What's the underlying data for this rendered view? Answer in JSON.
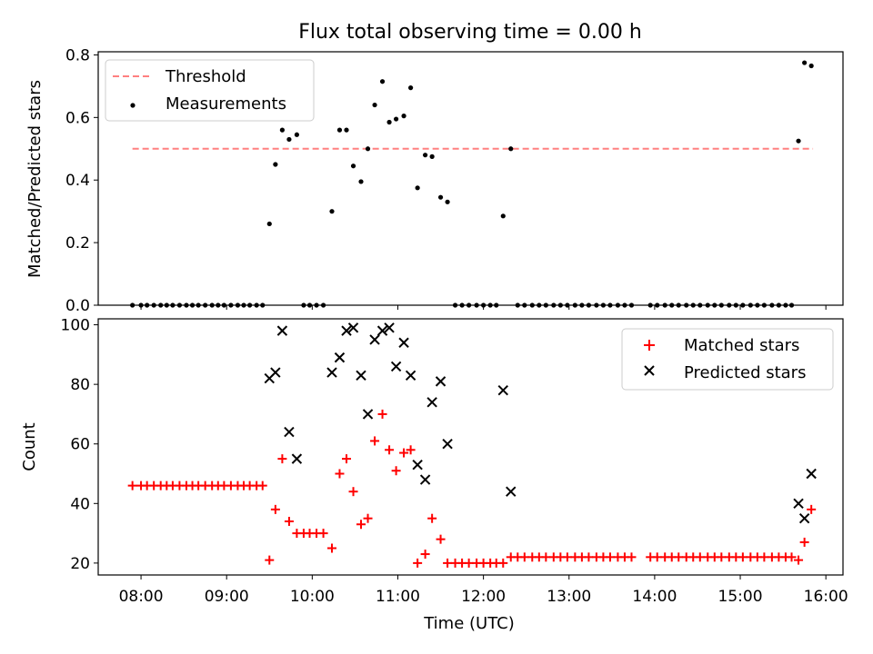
{
  "chart_data": [
    {
      "type": "scatter",
      "title": "Flux total observing time = 0.00 h",
      "xlabel": "",
      "ylabel": "Matched/Predicted stars",
      "xlim": [
        7.5,
        16.2
      ],
      "ylim": [
        0,
        0.81
      ],
      "yticks": [
        0.0,
        0.2,
        0.4,
        0.6,
        0.8
      ],
      "ytick_labels": [
        "0.0",
        "0.2",
        "0.4",
        "0.6",
        "0.8"
      ],
      "legend_position": "upper-left",
      "threshold": {
        "name": "Threshold",
        "value": 0.5,
        "x_range": [
          7.9,
          15.85
        ],
        "color": "#ff8080"
      },
      "series": [
        {
          "name": "Measurements",
          "color": "#000000",
          "x": [
            7.9,
            8.0,
            8.07,
            8.15,
            8.23,
            8.3,
            8.37,
            8.45,
            8.53,
            8.6,
            8.67,
            8.75,
            8.83,
            8.9,
            8.97,
            9.05,
            9.13,
            9.2,
            9.27,
            9.35,
            9.42,
            9.5,
            9.57,
            9.65,
            9.73,
            9.82,
            9.9,
            9.97,
            10.05,
            10.13,
            10.23,
            10.32,
            10.4,
            10.48,
            10.57,
            10.65,
            10.73,
            10.82,
            10.9,
            10.98,
            11.07,
            11.15,
            11.23,
            11.32,
            11.4,
            11.5,
            11.58,
            11.67,
            11.75,
            11.83,
            11.92,
            12.0,
            12.08,
            12.15,
            12.23,
            12.32,
            12.4,
            12.48,
            12.57,
            12.65,
            12.73,
            12.82,
            12.9,
            12.98,
            13.07,
            13.15,
            13.23,
            13.32,
            13.4,
            13.48,
            13.57,
            13.65,
            13.73,
            13.95,
            14.03,
            14.12,
            14.2,
            14.28,
            14.37,
            14.45,
            14.53,
            14.62,
            14.7,
            14.78,
            14.87,
            14.95,
            15.03,
            15.12,
            15.2,
            15.28,
            15.37,
            15.45,
            15.53,
            15.6,
            15.68,
            15.75,
            15.83
          ],
          "y": [
            0,
            0,
            0,
            0,
            0,
            0,
            0,
            0,
            0,
            0,
            0,
            0,
            0,
            0,
            0,
            0,
            0,
            0,
            0,
            0,
            0,
            0.26,
            0.45,
            0.56,
            0.53,
            0.545,
            0,
            0,
            0,
            0,
            0.3,
            0.56,
            0.56,
            0.445,
            0.395,
            0.5,
            0.64,
            0.715,
            0.585,
            0.595,
            0.605,
            0.695,
            0.375,
            0.48,
            0.475,
            0.345,
            0.33,
            0,
            0,
            0,
            0,
            0,
            0,
            0,
            0.285,
            0.5,
            0,
            0,
            0,
            0,
            0,
            0,
            0,
            0,
            0,
            0,
            0,
            0,
            0,
            0,
            0,
            0,
            0,
            0,
            0,
            0,
            0,
            0,
            0,
            0,
            0,
            0,
            0,
            0,
            0,
            0,
            0,
            0,
            0,
            0,
            0,
            0,
            0,
            0,
            0.525,
            0.775,
            0.765
          ]
        }
      ]
    },
    {
      "type": "scatter",
      "title": "",
      "xlabel": "Time (UTC)",
      "ylabel": "Count",
      "xlim": [
        7.5,
        16.2
      ],
      "ylim": [
        16,
        102
      ],
      "xticks": [
        8,
        9,
        10,
        11,
        12,
        13,
        14,
        15,
        16
      ],
      "xtick_labels": [
        "08:00",
        "09:00",
        "10:00",
        "11:00",
        "12:00",
        "13:00",
        "14:00",
        "15:00",
        "16:00"
      ],
      "yticks": [
        20,
        40,
        60,
        80,
        100
      ],
      "ytick_labels": [
        "20",
        "40",
        "60",
        "80",
        "100"
      ],
      "legend_position": "upper-right",
      "series": [
        {
          "name": "Matched stars",
          "marker": "plus",
          "color": "#ff0000",
          "x": [
            7.9,
            8.0,
            8.07,
            8.15,
            8.23,
            8.3,
            8.37,
            8.45,
            8.53,
            8.6,
            8.67,
            8.75,
            8.83,
            8.9,
            8.97,
            9.05,
            9.13,
            9.2,
            9.27,
            9.35,
            9.42,
            9.5,
            9.57,
            9.65,
            9.73,
            9.82,
            9.9,
            9.97,
            10.05,
            10.13,
            10.23,
            10.32,
            10.4,
            10.48,
            10.57,
            10.65,
            10.73,
            10.82,
            10.9,
            10.98,
            11.07,
            11.15,
            11.23,
            11.32,
            11.4,
            11.5,
            11.58,
            11.67,
            11.75,
            11.83,
            11.92,
            12.0,
            12.08,
            12.15,
            12.23,
            12.32,
            12.4,
            12.48,
            12.57,
            12.65,
            12.73,
            12.82,
            12.9,
            12.98,
            13.07,
            13.15,
            13.23,
            13.32,
            13.4,
            13.48,
            13.57,
            13.65,
            13.73,
            13.95,
            14.03,
            14.12,
            14.2,
            14.28,
            14.37,
            14.45,
            14.53,
            14.62,
            14.7,
            14.78,
            14.87,
            14.95,
            15.03,
            15.12,
            15.2,
            15.28,
            15.37,
            15.45,
            15.53,
            15.6,
            15.68,
            15.75,
            15.83
          ],
          "y": [
            46,
            46,
            46,
            46,
            46,
            46,
            46,
            46,
            46,
            46,
            46,
            46,
            46,
            46,
            46,
            46,
            46,
            46,
            46,
            46,
            46,
            21,
            38,
            55,
            34,
            30,
            30,
            30,
            30,
            30,
            25,
            50,
            55,
            44,
            33,
            35,
            61,
            70,
            58,
            51,
            57,
            58,
            20,
            23,
            35,
            28,
            20,
            20,
            20,
            20,
            20,
            20,
            20,
            20,
            20,
            22,
            22,
            22,
            22,
            22,
            22,
            22,
            22,
            22,
            22,
            22,
            22,
            22,
            22,
            22,
            22,
            22,
            22,
            22,
            22,
            22,
            22,
            22,
            22,
            22,
            22,
            22,
            22,
            22,
            22,
            22,
            22,
            22,
            22,
            22,
            22,
            22,
            22,
            22,
            21,
            27,
            38
          ]
        },
        {
          "name": "Predicted stars",
          "marker": "x",
          "color": "#000000",
          "x": [
            9.5,
            9.57,
            9.65,
            9.73,
            9.82,
            10.23,
            10.32,
            10.4,
            10.48,
            10.57,
            10.65,
            10.73,
            10.82,
            10.9,
            10.98,
            11.07,
            11.15,
            11.23,
            11.32,
            11.4,
            11.5,
            11.58,
            12.23,
            12.32,
            15.68,
            15.75,
            15.83
          ],
          "y": [
            82,
            84,
            98,
            64,
            55,
            84,
            89,
            98,
            99,
            83,
            70,
            95,
            98,
            99,
            86,
            94,
            83,
            53,
            48,
            74,
            81,
            60,
            78,
            44,
            40,
            35,
            50
          ]
        }
      ]
    }
  ]
}
